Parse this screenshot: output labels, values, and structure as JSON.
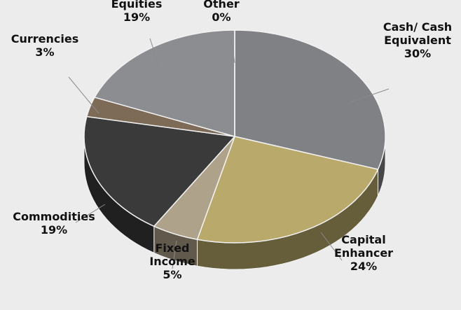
{
  "chart_data": {
    "type": "pie",
    "style": "3d-exploded-none",
    "slices": [
      {
        "label_lines": [
          "Cash/ Cash",
          "Equivalent"
        ],
        "pct_text": "30%",
        "value": 30,
        "color": "#808185"
      },
      {
        "label_lines": [
          "Capital",
          "Enhancer"
        ],
        "pct_text": "24%",
        "value": 24,
        "color": "#b9a96a"
      },
      {
        "label_lines": [
          "Fixed",
          "Income"
        ],
        "pct_text": "5%",
        "value": 5,
        "color": "#aea28a"
      },
      {
        "label_lines": [
          "Commodities"
        ],
        "pct_text": "19%",
        "value": 19,
        "color": "#3a3a3a"
      },
      {
        "label_lines": [
          "Currencies"
        ],
        "pct_text": "3%",
        "value": 3,
        "color": "#7d6b58"
      },
      {
        "label_lines": [
          "Equities"
        ],
        "pct_text": "19%",
        "value": 19,
        "color": "#8c8d91"
      },
      {
        "label_lines": [
          "Other"
        ],
        "pct_text": "0%",
        "value": 0,
        "color": "#6f6f6f"
      }
    ]
  }
}
